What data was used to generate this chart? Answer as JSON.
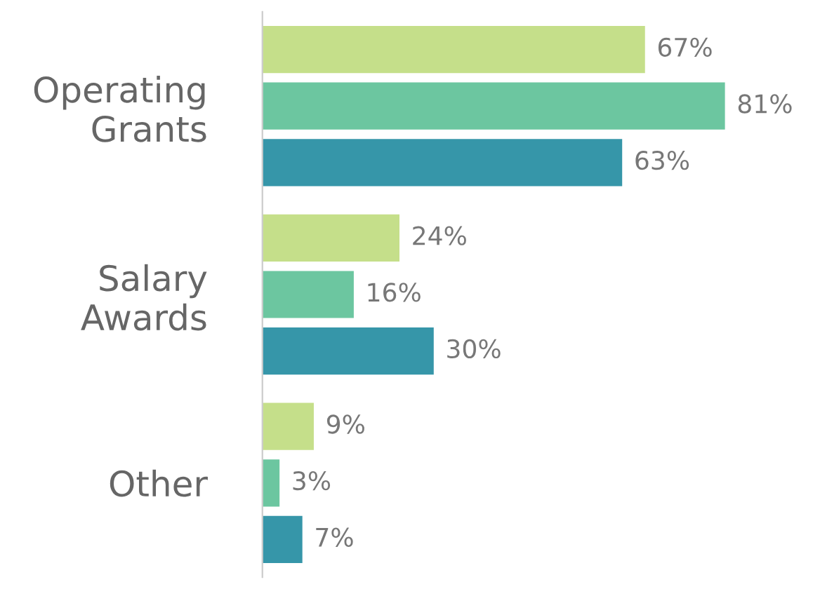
{
  "chart_data": {
    "type": "bar",
    "orientation": "horizontal",
    "categories": [
      "Operating\nGrants",
      "Salary\nAwards",
      "Other"
    ],
    "series": [
      {
        "color": "#c5df8a",
        "values": [
          67,
          24,
          9
        ],
        "value_labels": [
          "67%",
          "24%",
          "9%"
        ]
      },
      {
        "color": "#6cc6a0",
        "values": [
          81,
          16,
          3
        ],
        "value_labels": [
          "81%",
          "16%",
          "3%"
        ]
      },
      {
        "color": "#3696a9",
        "values": [
          63,
          30,
          7
        ],
        "value_labels": [
          "63%",
          "30%",
          "7%"
        ]
      }
    ],
    "grid": false,
    "legend": false,
    "tick_labels": "y"
  }
}
